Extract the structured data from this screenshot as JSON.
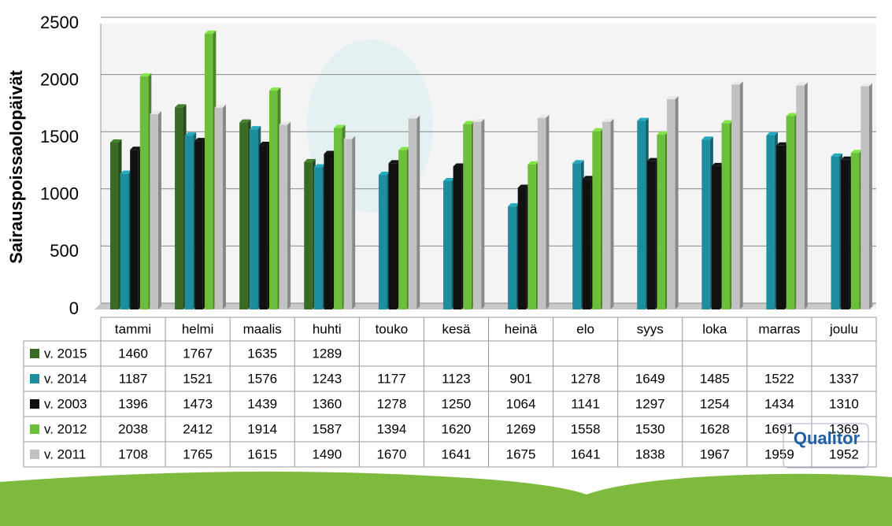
{
  "chart_data": {
    "type": "bar",
    "y_label": "Sairauspoissaolopäivät",
    "categories": [
      "tammi",
      "helmi",
      "maalis",
      "huhti",
      "touko",
      "kesä",
      "heinä",
      "elo",
      "syys",
      "loka",
      "marras",
      "joulu"
    ],
    "series": [
      {
        "name": "v. 2015",
        "color": "#3a6b26",
        "values": [
          1460,
          1767,
          1635,
          1289,
          null,
          null,
          null,
          null,
          null,
          null,
          null,
          null
        ]
      },
      {
        "name": "v. 2014",
        "color": "#1d8e9e",
        "values": [
          1187,
          1521,
          1576,
          1243,
          1177,
          1123,
          901,
          1278,
          1649,
          1485,
          1522,
          1337
        ]
      },
      {
        "name": "v. 2003",
        "color": "#111111",
        "values": [
          1396,
          1473,
          1439,
          1360,
          1278,
          1250,
          1064,
          1141,
          1297,
          1254,
          1434,
          1310
        ]
      },
      {
        "name": "v. 2012",
        "color": "#6cbf3a",
        "values": [
          2038,
          2412,
          1914,
          1587,
          1394,
          1620,
          1269,
          1558,
          1530,
          1628,
          1691,
          1369
        ]
      },
      {
        "name": "v. 2011",
        "color": "#c2c2c2",
        "values": [
          1708,
          1765,
          1615,
          1490,
          1670,
          1641,
          1675,
          1641,
          1838,
          1967,
          1959,
          1952
        ]
      }
    ],
    "ylim": [
      0,
      2500
    ],
    "yticks": [
      0,
      500,
      1000,
      1500,
      2000,
      2500
    ],
    "grid": true,
    "logo": "Qualitor"
  }
}
